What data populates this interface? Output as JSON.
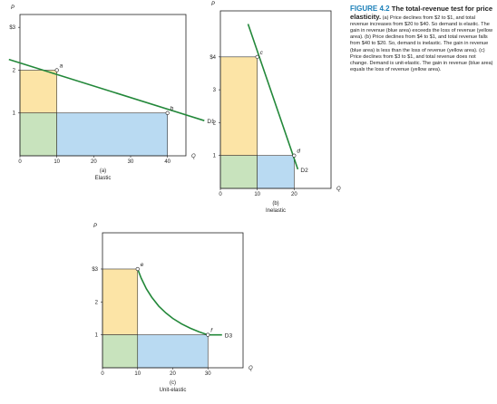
{
  "caption": {
    "label": "FIGURE 4.2",
    "title": "The total-revenue test for price elasticity.",
    "body": "(a) Price declines from $2 to $1, and total revenue increases from $20 to $40. So demand is elastic. The gain in revenue (blue area) exceeds the loss of revenue (yellow area). (b) Price declines from $4 to $1, and total revenue falls from $40 to $20. So, demand is inelastic. The gain in revenue (blue area) is less than the loss of revenue (yellow area). (c) Price declines from $3 to $1, and total revenue does not change. Demand is unit-elastic. The gain in revenue (blue area) equals the loss of revenue (yellow area)."
  },
  "colors": {
    "yellow": "#fce4a6",
    "green": "#c8e3bd",
    "blue": "#b9daf2",
    "curve": "#23883a"
  },
  "chart_data": [
    {
      "type": "line",
      "panel_letter": "(a)",
      "subtitle": "Elastic",
      "xlabel": "Q",
      "ylabel": "P",
      "x_ticks": [
        0,
        10,
        20,
        30,
        40
      ],
      "y_ticks": [
        {
          "v": 1,
          "t": "1"
        },
        {
          "v": 2,
          "t": "2"
        },
        {
          "v": 3,
          "t": "$3"
        }
      ],
      "xlim": [
        0,
        45
      ],
      "ylim": [
        0,
        3.3
      ],
      "series": [
        {
          "name": "D1",
          "x": [
            -3,
            50
          ],
          "y": [
            2.25,
            0.82
          ]
        }
      ],
      "points": [
        {
          "label": "a",
          "x": 10,
          "y": 2
        },
        {
          "label": "b",
          "x": 40,
          "y": 1
        }
      ],
      "rects": [
        {
          "fill": "yellow",
          "x0": 0,
          "x1": 10,
          "y0": 1,
          "y1": 2
        },
        {
          "fill": "green",
          "x0": 0,
          "x1": 10,
          "y0": 0,
          "y1": 1
        },
        {
          "fill": "blue",
          "x0": 10,
          "x1": 40,
          "y0": 0,
          "y1": 1
        }
      ]
    },
    {
      "type": "line",
      "panel_letter": "(b)",
      "subtitle": "Inelastic",
      "xlabel": "Q",
      "ylabel": "P",
      "x_ticks": [
        0,
        10,
        20
      ],
      "y_ticks": [
        {
          "v": 1,
          "t": "1"
        },
        {
          "v": 2,
          "t": "2"
        },
        {
          "v": 3,
          "t": "3"
        },
        {
          "v": 4,
          "t": "$4"
        }
      ],
      "xlim": [
        0,
        30
      ],
      "ylim": [
        0,
        5.4
      ],
      "series": [
        {
          "name": "D2",
          "x": [
            7.5,
            21
          ],
          "y": [
            5.0,
            0.58
          ]
        }
      ],
      "points": [
        {
          "label": "c",
          "x": 10,
          "y": 4
        },
        {
          "label": "d",
          "x": 20,
          "y": 1
        }
      ],
      "rects": [
        {
          "fill": "yellow",
          "x0": 0,
          "x1": 10,
          "y0": 1,
          "y1": 4
        },
        {
          "fill": "green",
          "x0": 0,
          "x1": 10,
          "y0": 0,
          "y1": 1
        },
        {
          "fill": "blue",
          "x0": 10,
          "x1": 20,
          "y0": 0,
          "y1": 1
        }
      ]
    },
    {
      "type": "line",
      "panel_letter": "(c)",
      "subtitle": "Unit-elastic",
      "xlabel": "Q",
      "ylabel": "P",
      "x_ticks": [
        0,
        10,
        20,
        30
      ],
      "y_ticks": [
        {
          "v": 1,
          "t": "1"
        },
        {
          "v": 2,
          "t": "2"
        },
        {
          "v": 3,
          "t": "$3"
        }
      ],
      "xlim": [
        0,
        40
      ],
      "ylim": [
        0,
        4.1
      ],
      "series": [
        {
          "name": "D3",
          "x": [
            10,
            11,
            12.5,
            14,
            16,
            18,
            20,
            22.5,
            25,
            27.5,
            30,
            34
          ],
          "y": [
            3.0,
            2.727,
            2.4,
            2.143,
            1.875,
            1.667,
            1.5,
            1.333,
            1.2,
            1.091,
            1.0,
            1.0
          ]
        }
      ],
      "points": [
        {
          "label": "e",
          "x": 10,
          "y": 3
        },
        {
          "label": "f",
          "x": 30,
          "y": 1
        }
      ],
      "rects": [
        {
          "fill": "yellow",
          "x0": 0,
          "x1": 10,
          "y0": 1,
          "y1": 3
        },
        {
          "fill": "green",
          "x0": 0,
          "x1": 10,
          "y0": 0,
          "y1": 1
        },
        {
          "fill": "blue",
          "x0": 10,
          "x1": 30,
          "y0": 0,
          "y1": 1
        }
      ]
    }
  ]
}
